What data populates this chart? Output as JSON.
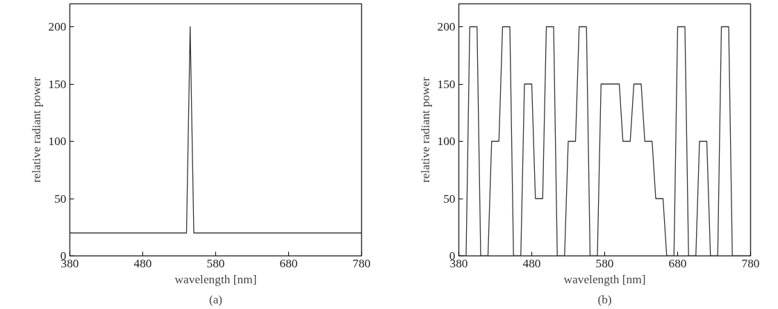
{
  "chart_data": [
    {
      "type": "line",
      "title": "(a)",
      "xlabel": "wavelength [nm]",
      "ylabel": "relative radiant power",
      "grid": false,
      "x": [
        380,
        540,
        545,
        550,
        780
      ],
      "series": [
        {
          "color": "#333333",
          "values": [
            20,
            20,
            200,
            20,
            20
          ]
        }
      ],
      "xlim": [
        380,
        780
      ],
      "xticks": [
        380,
        480,
        580,
        680,
        780
      ],
      "ylim": [
        0,
        220
      ],
      "yticks": [
        0,
        50,
        100,
        150,
        200
      ]
    },
    {
      "type": "line",
      "title": "(b)",
      "xlabel": "wavelength [nm]",
      "ylabel": "relative radiant power",
      "grid": false,
      "x": [
        380,
        390,
        395,
        405,
        410,
        420,
        425,
        435,
        440,
        450,
        455,
        465,
        470,
        480,
        485,
        495,
        500,
        510,
        515,
        525,
        530,
        540,
        545,
        555,
        560,
        570,
        575,
        600,
        605,
        615,
        620,
        630,
        635,
        645,
        650,
        660,
        665,
        675,
        680,
        690,
        695,
        705,
        710,
        720,
        725,
        735,
        740,
        750,
        755,
        780
      ],
      "series": [
        {
          "color": "#333333",
          "values": [
            0,
            0,
            200,
            200,
            0,
            0,
            100,
            100,
            200,
            200,
            0,
            0,
            150,
            150,
            50,
            50,
            200,
            200,
            0,
            0,
            100,
            100,
            200,
            200,
            0,
            0,
            150,
            150,
            100,
            100,
            150,
            150,
            100,
            100,
            50,
            50,
            0,
            0,
            200,
            200,
            0,
            0,
            100,
            100,
            0,
            0,
            200,
            200,
            0,
            0
          ]
        }
      ],
      "xlim": [
        380,
        780
      ],
      "xticks": [
        380,
        480,
        580,
        680,
        780
      ],
      "ylim": [
        0,
        220
      ],
      "yticks": [
        0,
        50,
        100,
        150,
        200
      ]
    }
  ]
}
